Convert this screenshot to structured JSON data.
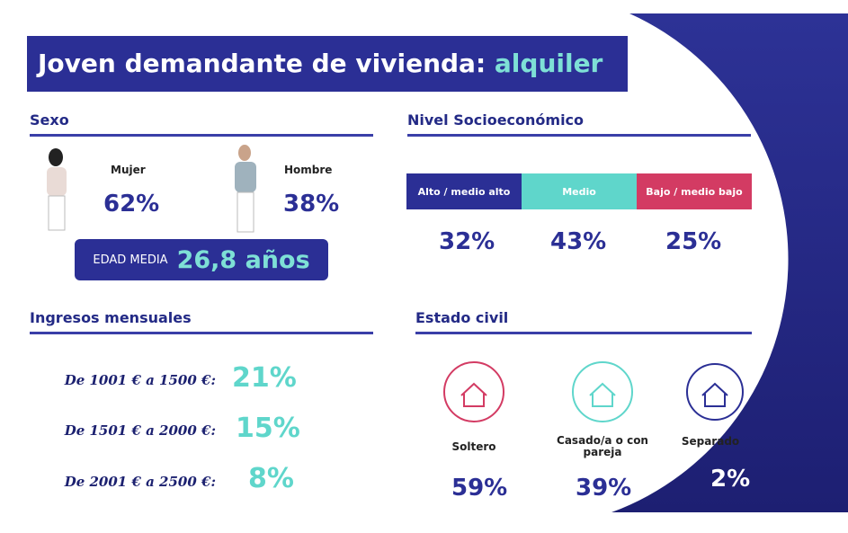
{
  "title": {
    "main": "Joven demandante de vivienda:",
    "highlight": "alquiler"
  },
  "sexo": {
    "heading": "Sexo",
    "mujer": {
      "label": "Mujer",
      "value": "62%"
    },
    "hombre": {
      "label": "Hombre",
      "value": "38%"
    },
    "edad": {
      "label": "EDAD MEDIA",
      "value": "26,8 años"
    }
  },
  "nivel": {
    "heading": "Nivel Socioeconómico",
    "segments": [
      {
        "label": "Alto / medio alto",
        "value": "32%"
      },
      {
        "label": "Medio",
        "value": "43%"
      },
      {
        "label": "Bajo / medio bajo",
        "value": "25%"
      }
    ]
  },
  "ingresos": {
    "heading": "Ingresos mensuales",
    "rows": [
      {
        "label": "De 1001 € a 1500 €:",
        "value": "21%"
      },
      {
        "label": "De 1501 € a 2000 €:",
        "value": "15%"
      },
      {
        "label": "De 2001 € a 2500 €:",
        "value": "8%"
      }
    ]
  },
  "estado": {
    "heading": "Estado civil",
    "items": [
      {
        "label": "Soltero",
        "value": "59%"
      },
      {
        "label": "Casado/a o con pareja",
        "value": "39%"
      },
      {
        "label": "Separado",
        "value": "2%"
      }
    ]
  }
}
